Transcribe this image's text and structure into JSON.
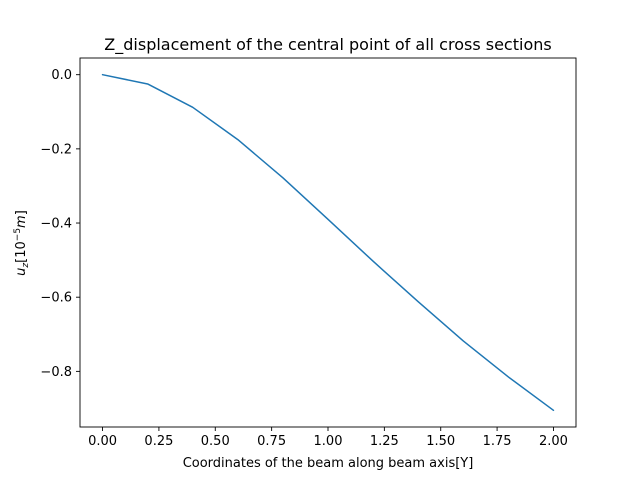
{
  "chart_data": {
    "type": "line",
    "title": "Z_displacement of the central point of all cross sections",
    "xlabel": "Coordinates of the beam along beam axis[Y]",
    "ylabel": {
      "base": "u",
      "subscript": "z",
      "open": "[10",
      "exponent": "−5",
      "unit": "m",
      "close": "]"
    },
    "xlim": [
      -0.1,
      2.1
    ],
    "ylim": [
      -0.95,
      0.045
    ],
    "xticks": [
      0.0,
      0.25,
      0.5,
      0.75,
      1.0,
      1.25,
      1.5,
      1.75,
      2.0
    ],
    "xtick_labels": [
      "0.00",
      "0.25",
      "0.50",
      "0.75",
      "1.00",
      "1.25",
      "1.50",
      "1.75",
      "2.00"
    ],
    "yticks": [
      0.0,
      -0.2,
      -0.4,
      -0.6,
      -0.8
    ],
    "ytick_labels": [
      "0.0",
      "−0.2",
      "−0.4",
      "−0.6",
      "−0.8"
    ],
    "grid": false,
    "series": [
      {
        "color": "#1f77b4",
        "x": [
          0.0,
          0.2,
          0.4,
          0.6,
          0.8,
          1.0,
          1.2,
          1.4,
          1.6,
          1.8,
          2.0
        ],
        "y": [
          0.0,
          -0.025,
          -0.088,
          -0.175,
          -0.278,
          -0.39,
          -0.503,
          -0.612,
          -0.718,
          -0.815,
          -0.905
        ]
      }
    ]
  }
}
